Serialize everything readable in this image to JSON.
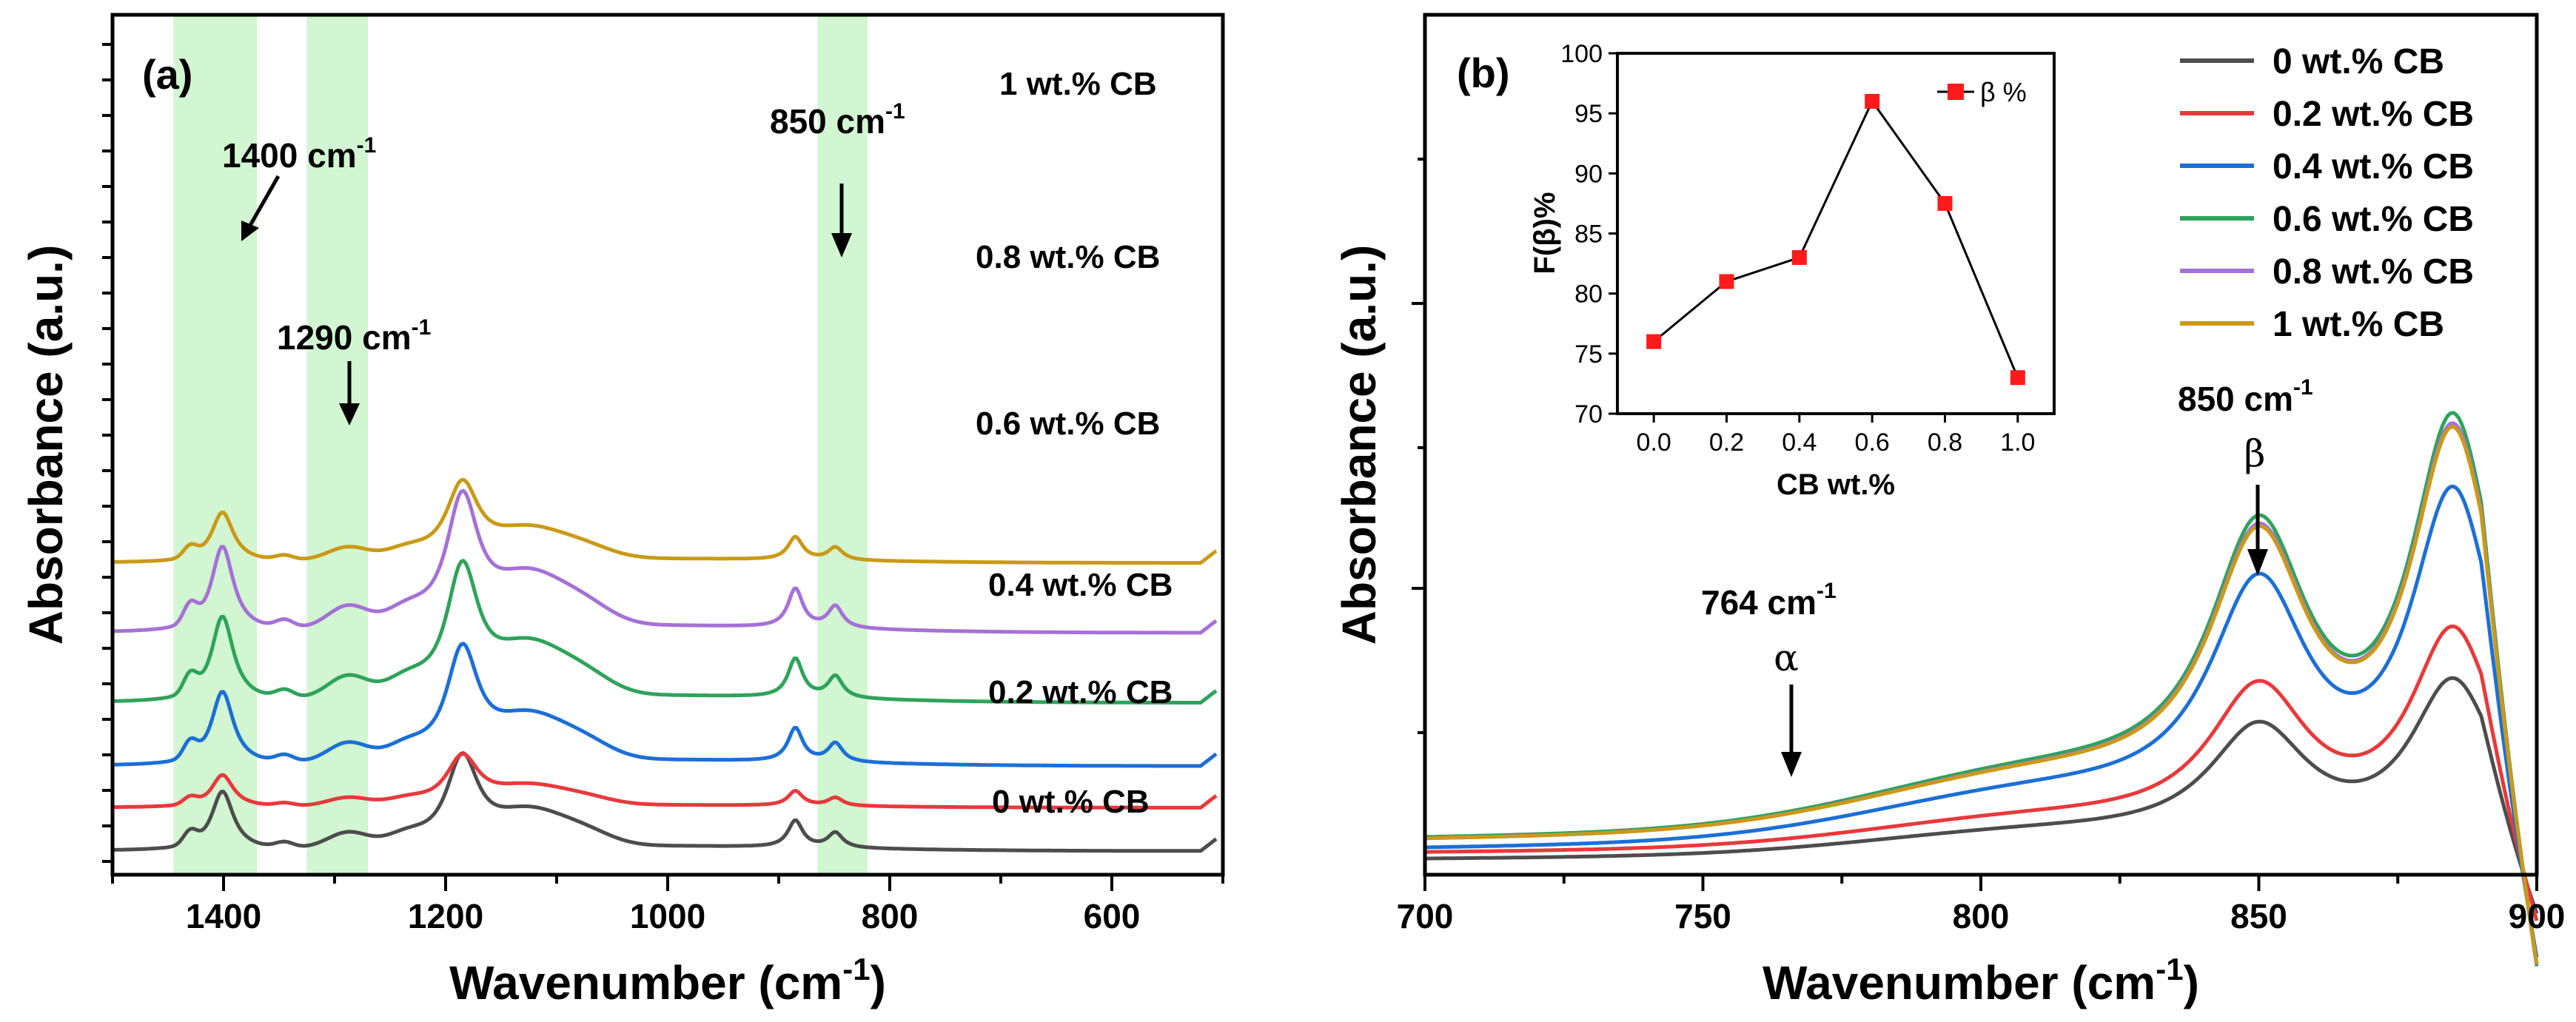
{
  "chart_data": [
    {
      "type": "line",
      "panel_label": "(a)",
      "xlabel": "Wavenumber (cm",
      "xlabel_sup": "-1",
      "xlabel_close": ")",
      "ylabel": "Absorbance (a.u.)",
      "xlim": [
        1500,
        500
      ],
      "xticks": [
        "1400",
        "1200",
        "1000",
        "800",
        "600"
      ],
      "xtick_values": [
        1400,
        1200,
        1000,
        800,
        600
      ],
      "highlight_bands": [
        [
          1445,
          1370
        ],
        [
          1325,
          1270
        ],
        [
          865,
          820
        ]
      ],
      "series_labels": [
        "1 wt.% CB",
        "0.8 wt.% CB",
        "0.6 wt.% CB",
        "0.4 wt.% CB",
        "0.2 wt.% CB",
        "0 wt.% CB"
      ],
      "series": [
        {
          "name": "0 wt.% CB",
          "color": "#4d4d4d",
          "offset": 0.0,
          "scale": 1.0
        },
        {
          "name": "0.2 wt.% CB",
          "color": "#e8393b",
          "offset": 1.3,
          "scale": 0.55
        },
        {
          "name": "0.4 wt.% CB",
          "color": "#1c6fd6",
          "offset": 2.55,
          "scale": 1.25
        },
        {
          "name": "0.6 wt.% CB",
          "color": "#2fa35a",
          "offset": 4.45,
          "scale": 1.45
        },
        {
          "name": "0.8 wt.% CB",
          "color": "#a671d6",
          "offset": 6.55,
          "scale": 1.45
        },
        {
          "name": "1 wt.% CB",
          "color": "#c99a17",
          "offset": 8.65,
          "scale": 0.85
        }
      ],
      "annotations": [
        {
          "text": "1400 cm",
          "sup": "-1",
          "x": 1400
        },
        {
          "text": "1290 cm",
          "sup": "-1",
          "x": 1290
        },
        {
          "text": "850 cm",
          "sup": "-1",
          "x": 850
        }
      ]
    },
    {
      "type": "line",
      "panel_label": "(b)",
      "xlabel": "Wavenumber (cm",
      "xlabel_sup": "-1",
      "xlabel_close": ")",
      "ylabel": "Absorbance (a.u.)",
      "xlim": [
        700,
        900
      ],
      "xticks": [
        "700",
        "750",
        "800",
        "850",
        "900"
      ],
      "xtick_values": [
        700,
        750,
        800,
        850,
        900
      ],
      "legend": [
        {
          "name": "0 wt.% CB",
          "color": "#4d4d4d"
        },
        {
          "name": "0.2 wt.% CB",
          "color": "#e8393b"
        },
        {
          "name": "0.4 wt.% CB",
          "color": "#1c6fd6"
        },
        {
          "name": "0.6 wt.% CB",
          "color": "#2fa35a"
        },
        {
          "name": "0.8 wt.% CB",
          "color": "#a671d6"
        },
        {
          "name": "1 wt.% CB",
          "color": "#c99a17"
        }
      ],
      "series": [
        {
          "name": "0 wt.% CB",
          "color": "#4d4d4d",
          "base": 0.05,
          "amp": 1.0
        },
        {
          "name": "0.2 wt.% CB",
          "color": "#e8393b",
          "base": 0.1,
          "amp": 1.25
        },
        {
          "name": "0.4 wt.% CB",
          "color": "#1c6fd6",
          "base": 0.13,
          "amp": 2.0
        },
        {
          "name": "0.6 wt.% CB",
          "color": "#2fa35a",
          "base": 0.21,
          "amp": 2.35
        },
        {
          "name": "0.8 wt.% CB",
          "color": "#a671d6",
          "base": 0.2,
          "amp": 2.3
        },
        {
          "name": "1 wt.% CB",
          "color": "#c99a17",
          "base": 0.2,
          "amp": 2.28
        }
      ],
      "annotations": [
        {
          "text": "764 cm",
          "sup": "-1",
          "greek": "α",
          "x": 764
        },
        {
          "text": "850 cm",
          "sup": "-1",
          "greek": "β",
          "x": 850
        }
      ],
      "inset": {
        "type": "line",
        "xlabel": "CB wt.%",
        "ylabel": "F(β)%",
        "legend": "β %",
        "xlim": [
          -0.1,
          1.1
        ],
        "ylim": [
          70,
          100
        ],
        "xticks": [
          "0.0",
          "0.2",
          "0.4",
          "0.6",
          "0.8",
          "1.0"
        ],
        "xtick_values": [
          0.0,
          0.2,
          0.4,
          0.6,
          0.8,
          1.0
        ],
        "yticks": [
          "70",
          "75",
          "80",
          "85",
          "90",
          "95",
          "100"
        ],
        "ytick_values": [
          70,
          75,
          80,
          85,
          90,
          95,
          100
        ],
        "x": [
          0.0,
          0.2,
          0.4,
          0.6,
          0.8,
          1.0
        ],
        "y": [
          76,
          81,
          83,
          96,
          87.5,
          73
        ]
      }
    }
  ]
}
